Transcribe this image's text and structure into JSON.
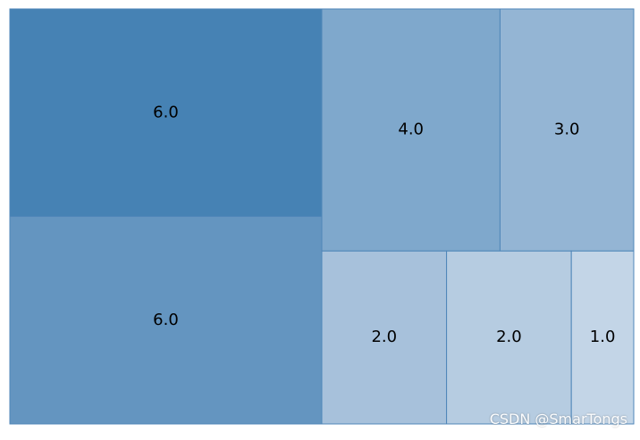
{
  "chart_data": {
    "type": "treemap",
    "values": [
      6,
      6,
      4,
      3,
      2,
      2,
      1
    ],
    "labels": [
      "6.0",
      "6.0",
      "4.0",
      "3.0",
      "2.0",
      "2.0",
      "1.0"
    ],
    "colors": [
      "#4682b4",
      "#6495c0",
      "#7fa8cc",
      "#94b5d4",
      "#a7c1db",
      "#b6cce1",
      "#c3d5e7"
    ]
  },
  "watermark": "CSDN @SmarTongs"
}
